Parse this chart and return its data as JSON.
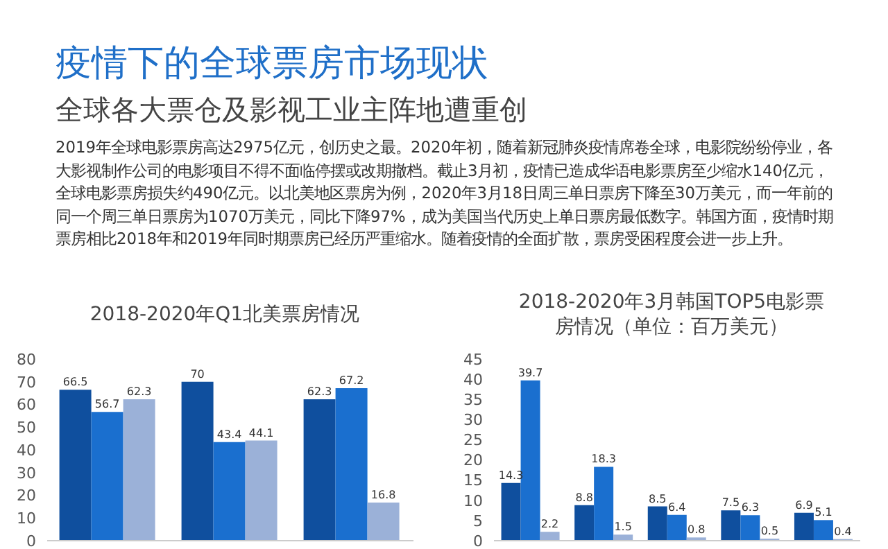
{
  "chart_data": [
    {
      "type": "other",
      "title": "疫情下的全球票房市场现状",
      "subtitle": "全球各大票仓及影视工业主阵地遭重创",
      "annotations": [
        "2019年全球电影票房高达2975亿元，创历史之最。2020年初，随着新冠肺炎疫情席卷全球，电影院纷纷停业，各大影视制作公司的电影项目不得不面临停摆或改期撤档。截止3月初，疫情已造成华语电影票房至少缩水140亿元，全球电影票房损失约490亿元。以北美地区票房为例，2020年3月18日周三单日票房下降至30万美元，而一年前的同一个周三单日票房为1070万美元，同比下降97%，成为美国当代历史上单日票房最低数字。韩国方面，疫情时期票房相比2018年和2019年同时期票房已经历严重缩水。随着疫情的全面扩散，票房受困程度会进一步上升。"
      ]
    },
    {
      "type": "bar",
      "title": "2018-2020年Q1北美票房情况",
      "categories": [
        null,
        null,
        null
      ],
      "ylim": [
        0,
        80
      ],
      "yticks": [
        0,
        10,
        20,
        30,
        40,
        50,
        60,
        70,
        80
      ],
      "data_labels": true,
      "series": [
        {
          "color": "#0f4f9e",
          "values": [
            66.5,
            70,
            62.3
          ]
        },
        {
          "color": "#1a6fcf",
          "values": [
            56.7,
            43.4,
            67.2
          ]
        },
        {
          "color": "#9bb1d8",
          "values": [
            62.3,
            44.1,
            16.8
          ]
        }
      ]
    },
    {
      "type": "bar",
      "title": "2018-2020年3月韩国TOP5电影票房情况（单位：百万美元）",
      "categories": [
        null,
        null,
        null,
        null,
        null
      ],
      "ylim": [
        0,
        45
      ],
      "yticks": [
        0,
        5,
        10,
        15,
        20,
        25,
        30,
        35,
        40,
        45
      ],
      "data_labels": true,
      "series": [
        {
          "color": "#0f4f9e",
          "values": [
            14.3,
            8.8,
            8.5,
            7.5,
            6.9
          ]
        },
        {
          "color": "#1a6fcf",
          "values": [
            39.7,
            18.3,
            6.4,
            6.3,
            5.1
          ]
        },
        {
          "color": "#9bb1d8",
          "values": [
            2.2,
            1.5,
            0.8,
            0.5,
            0.4
          ]
        }
      ]
    }
  ]
}
